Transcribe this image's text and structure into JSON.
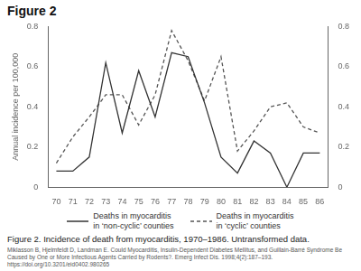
{
  "chart_data": {
    "type": "line",
    "title": "Figure 2",
    "y_label": "Annual incidence per 100,000",
    "x": [
      70,
      71,
      72,
      73,
      74,
      75,
      76,
      77,
      78,
      79,
      80,
      81,
      82,
      83,
      84,
      85,
      86
    ],
    "series": [
      {
        "name": "Deaths in myocarditis\nin ‘non-cyclic’ counties",
        "color": "#333333",
        "line_style": "solid",
        "values": [
          0.08,
          0.08,
          0.15,
          0.62,
          0.27,
          0.58,
          0.35,
          0.67,
          0.65,
          0.42,
          0.15,
          0.07,
          0.23,
          0.17,
          0.0,
          0.17,
          0.17
        ]
      },
      {
        "name": "Deaths in myocarditis\nin ‘cyclic’ counties",
        "color": "#555555",
        "line_style": "dashed",
        "values": [
          0.12,
          0.25,
          0.35,
          0.46,
          0.46,
          0.31,
          0.46,
          0.78,
          0.63,
          0.43,
          0.65,
          0.18,
          0.28,
          0.4,
          0.42,
          0.3,
          0.27
        ]
      }
    ],
    "xlim": [
      69.5,
      86.5
    ],
    "xticks": [
      70,
      71,
      72,
      73,
      74,
      75,
      76,
      77,
      78,
      79,
      80,
      81,
      82,
      83,
      84,
      85,
      86
    ],
    "ylim": [
      0,
      0.8
    ],
    "yticks": [
      0,
      0.2,
      0.4,
      0.6,
      0.8
    ],
    "y2lim": [
      0,
      0.8
    ],
    "y2ticks": [
      0,
      0.2,
      0.4,
      0.6,
      0.8
    ],
    "grid": false,
    "legend": "bottom",
    "caption": "Figure 2. Incidence of death from myocarditis, 1970–1986. Untransformed data.",
    "citation": "Miklasson B, Hjelmfeldt D, Landman E. Could Myocarditis, Insulin-Dependent Diabetes Mellitus, and Guillain-Barré Syndrome Be Caused by One or More Infectious Agents Carried by Rodents?. Emerg Infect Dis. 1998;4(2):187–193. https://doi.org/10.3201/eid0402.980265"
  }
}
